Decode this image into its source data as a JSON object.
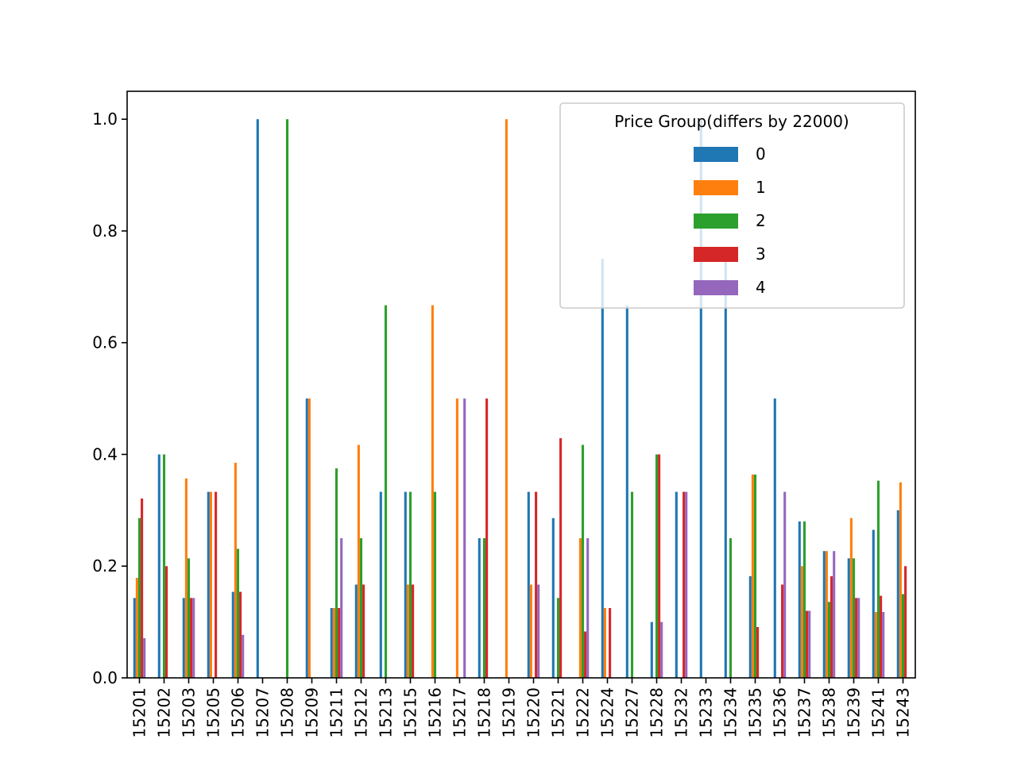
{
  "chart_data": {
    "type": "bar",
    "title": "",
    "xlabel": "",
    "ylabel": "",
    "ylim": [
      0,
      1.05
    ],
    "yticks": [
      "0.0",
      "0.2",
      "0.4",
      "0.6",
      "0.8",
      "1.0"
    ],
    "grid": false,
    "legend": {
      "title": "Price Group(differs by 22000)",
      "placement": "upper-right"
    },
    "categories": [
      "15201",
      "15202",
      "15203",
      "15205",
      "15206",
      "15207",
      "15208",
      "15209",
      "15211",
      "15212",
      "15213",
      "15215",
      "15216",
      "15217",
      "15218",
      "15219",
      "15220",
      "15221",
      "15222",
      "15224",
      "15227",
      "15228",
      "15232",
      "15233",
      "15234",
      "15235",
      "15236",
      "15237",
      "15238",
      "15239",
      "15241",
      "15243"
    ],
    "series": [
      {
        "name": "0",
        "color": "#1f77b4",
        "values": [
          0.143,
          0.4,
          0.143,
          0.333,
          0.154,
          1.0,
          0,
          0.5,
          0.125,
          0.167,
          0.333,
          0.333,
          0,
          0,
          0.25,
          0,
          0.333,
          0.286,
          0,
          0.75,
          0.667,
          0.1,
          0.333,
          1.0,
          0.75,
          0.182,
          0.5,
          0.28,
          0.227,
          0.214,
          0.265,
          0.3
        ]
      },
      {
        "name": "1",
        "color": "#ff7f0e",
        "values": [
          0.179,
          0,
          0.357,
          0.333,
          0.385,
          0,
          0,
          0.5,
          0.125,
          0.417,
          0,
          0.167,
          0.667,
          0.5,
          0,
          1.0,
          0.167,
          0,
          0.25,
          0.125,
          0,
          0,
          0,
          0,
          0,
          0.364,
          0,
          0.2,
          0.227,
          0.286,
          0.118,
          0.35
        ]
      },
      {
        "name": "2",
        "color": "#2ca02c",
        "values": [
          0.286,
          0.4,
          0.214,
          0,
          0.231,
          0,
          1.0,
          0,
          0.375,
          0.25,
          0.667,
          0.333,
          0.333,
          0,
          0.25,
          0,
          0,
          0.143,
          0.417,
          0,
          0.333,
          0.4,
          0,
          0,
          0.25,
          0.364,
          0,
          0.28,
          0.136,
          0.214,
          0.353,
          0.15
        ]
      },
      {
        "name": "3",
        "color": "#d62728",
        "values": [
          0.321,
          0.2,
          0.143,
          0.333,
          0.154,
          0,
          0,
          0,
          0.125,
          0.167,
          0,
          0.167,
          0,
          0,
          0.5,
          0,
          0.333,
          0.429,
          0.083,
          0.125,
          0,
          0.4,
          0.333,
          0,
          0,
          0.091,
          0.167,
          0.12,
          0.182,
          0.143,
          0.147,
          0.2
        ]
      },
      {
        "name": "4",
        "color": "#9467bd",
        "values": [
          0.071,
          0,
          0.143,
          0,
          0.077,
          0,
          0,
          0,
          0.25,
          0,
          0,
          0,
          0,
          0.5,
          0,
          0,
          0.167,
          0,
          0.25,
          0,
          0,
          0.1,
          0.333,
          0,
          0,
          0,
          0.333,
          0.12,
          0.227,
          0.143,
          0.118,
          0
        ]
      }
    ]
  }
}
